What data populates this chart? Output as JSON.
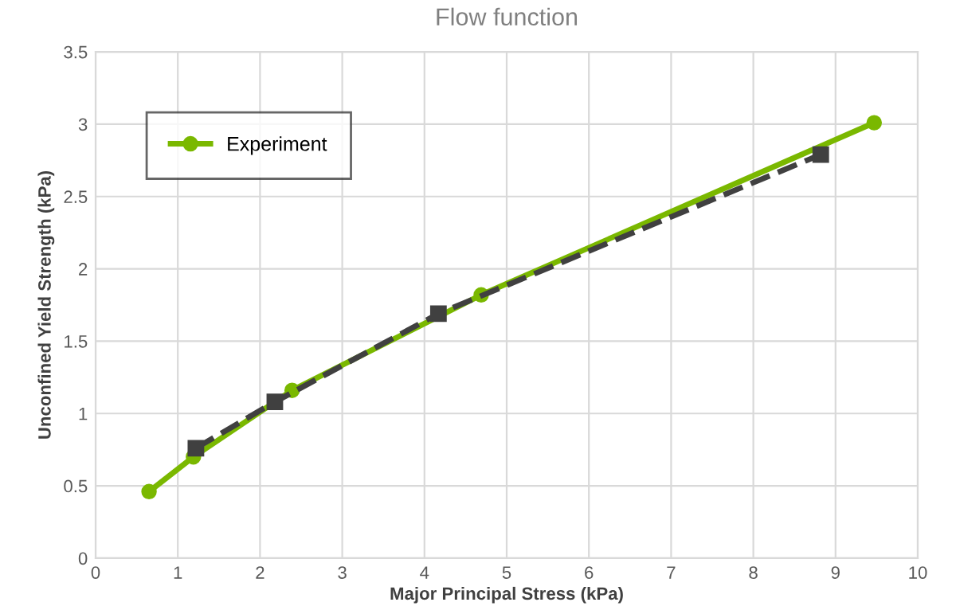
{
  "chart_data": {
    "type": "line",
    "title": "Flow function",
    "xlabel": "Major Principal Stress (kPa)",
    "ylabel": "Unconfined Yield Strength (kPa)",
    "series": [
      {
        "name": "Experiment",
        "color": "#7ab800",
        "x": [
          0.65,
          1.19,
          2.39,
          4.69,
          9.47
        ],
        "values": [
          0.46,
          0.7,
          1.16,
          1.82,
          3.01
        ],
        "marker": "circle",
        "line_style": "solid"
      },
      {
        "color": "#404040",
        "x": [
          1.22,
          2.18,
          4.17,
          8.82
        ],
        "values": [
          0.76,
          1.08,
          1.69,
          2.79
        ],
        "marker": "square",
        "line_style": "dashed"
      }
    ],
    "xlim": [
      0,
      10
    ],
    "xticks": [
      0,
      1,
      2,
      3,
      4,
      5,
      6,
      7,
      8,
      9,
      10
    ],
    "ylim": [
      0,
      3.5
    ],
    "yticks": [
      0,
      0.5,
      1,
      1.5,
      2,
      2.5,
      3,
      3.5
    ],
    "grid": true,
    "legend": "top left"
  }
}
